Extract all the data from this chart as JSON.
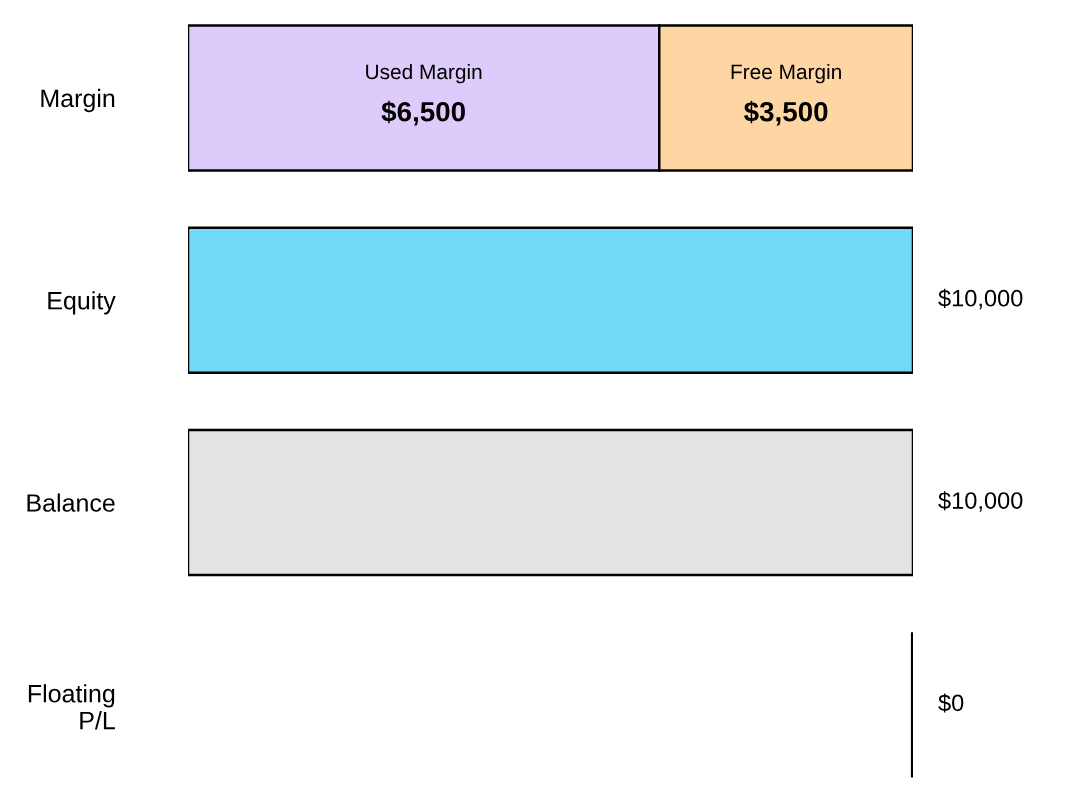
{
  "chart_data": {
    "type": "bar",
    "orientation": "horizontal",
    "stacked": true,
    "categories": [
      "Margin",
      "Equity",
      "Balance",
      "Floating\nP/L"
    ],
    "series": [
      {
        "name": "Used Margin",
        "colors": [
          "#dccbfb",
          "#71d9f5",
          "#e3e3e3",
          "#000000"
        ],
        "values": [
          6500,
          10000,
          10000,
          0
        ],
        "value_labels": [
          "$6,500",
          "$10,000",
          "$10,000",
          "$0"
        ]
      },
      {
        "name": "Free Margin",
        "colors": [
          "#fdd6a4",
          null,
          null,
          null
        ],
        "values": [
          3500,
          null,
          null,
          null
        ],
        "value_labels": [
          "$3,500",
          null,
          null,
          null
        ]
      }
    ],
    "grid": false,
    "legend": false
  }
}
